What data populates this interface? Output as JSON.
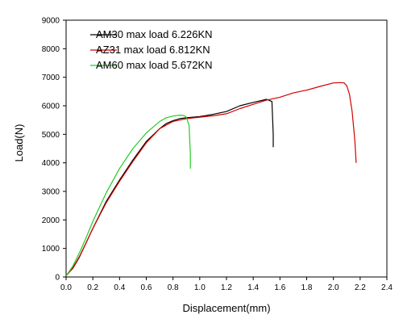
{
  "chart_data": {
    "type": "line",
    "title": "",
    "xlabel": "Displacement(mm)",
    "ylabel": "Load(N)",
    "xlim": [
      0.0,
      2.4
    ],
    "ylim": [
      0,
      9000
    ],
    "xticks": [
      "0.0",
      "0.2",
      "0.4",
      "0.6",
      "0.8",
      "1.0",
      "1.2",
      "1.4",
      "1.6",
      "1.8",
      "2.0",
      "2.2",
      "2.4"
    ],
    "yticks": [
      "0",
      "1000",
      "2000",
      "3000",
      "4000",
      "5000",
      "6000",
      "7000",
      "8000",
      "9000"
    ],
    "grid": false,
    "legend_position": "top-left",
    "series": [
      {
        "name": "AM30 max load 6.226KN",
        "color": "#000000",
        "x": [
          0.0,
          0.02,
          0.05,
          0.1,
          0.15,
          0.2,
          0.3,
          0.4,
          0.5,
          0.6,
          0.7,
          0.75,
          0.8,
          0.85,
          0.9,
          0.95,
          1.0,
          1.1,
          1.2,
          1.3,
          1.4,
          1.5,
          1.54,
          1.55,
          1.55
        ],
        "y": [
          50,
          150,
          300,
          700,
          1200,
          1700,
          2650,
          3400,
          4100,
          4750,
          5200,
          5380,
          5480,
          5550,
          5580,
          5600,
          5620,
          5700,
          5800,
          6000,
          6120,
          6226,
          6150,
          5000,
          4550
        ]
      },
      {
        "name": "AZ31 max load 6.812KN",
        "color": "#d40000",
        "x": [
          0.0,
          0.02,
          0.05,
          0.1,
          0.15,
          0.2,
          0.3,
          0.4,
          0.5,
          0.6,
          0.7,
          0.8,
          0.9,
          1.0,
          1.1,
          1.2,
          1.3,
          1.4,
          1.5,
          1.6,
          1.7,
          1.8,
          1.9,
          2.0,
          2.05,
          2.08,
          2.1,
          2.12,
          2.14,
          2.16,
          2.17
        ],
        "y": [
          50,
          150,
          320,
          720,
          1200,
          1700,
          2600,
          3350,
          4050,
          4700,
          5200,
          5450,
          5550,
          5600,
          5650,
          5720,
          5900,
          6050,
          6200,
          6300,
          6450,
          6550,
          6680,
          6800,
          6812,
          6800,
          6700,
          6400,
          5800,
          4800,
          4000
        ]
      },
      {
        "name": "AM60 max load 5.672KN",
        "color": "#22cc22",
        "x": [
          0.0,
          0.02,
          0.05,
          0.1,
          0.15,
          0.2,
          0.3,
          0.4,
          0.5,
          0.6,
          0.7,
          0.75,
          0.8,
          0.85,
          0.88,
          0.9,
          0.92,
          0.93,
          0.93
        ],
        "y": [
          50,
          170,
          380,
          850,
          1380,
          1950,
          2950,
          3800,
          4500,
          5050,
          5450,
          5580,
          5640,
          5672,
          5660,
          5600,
          5300,
          4300,
          3800
        ]
      }
    ]
  }
}
